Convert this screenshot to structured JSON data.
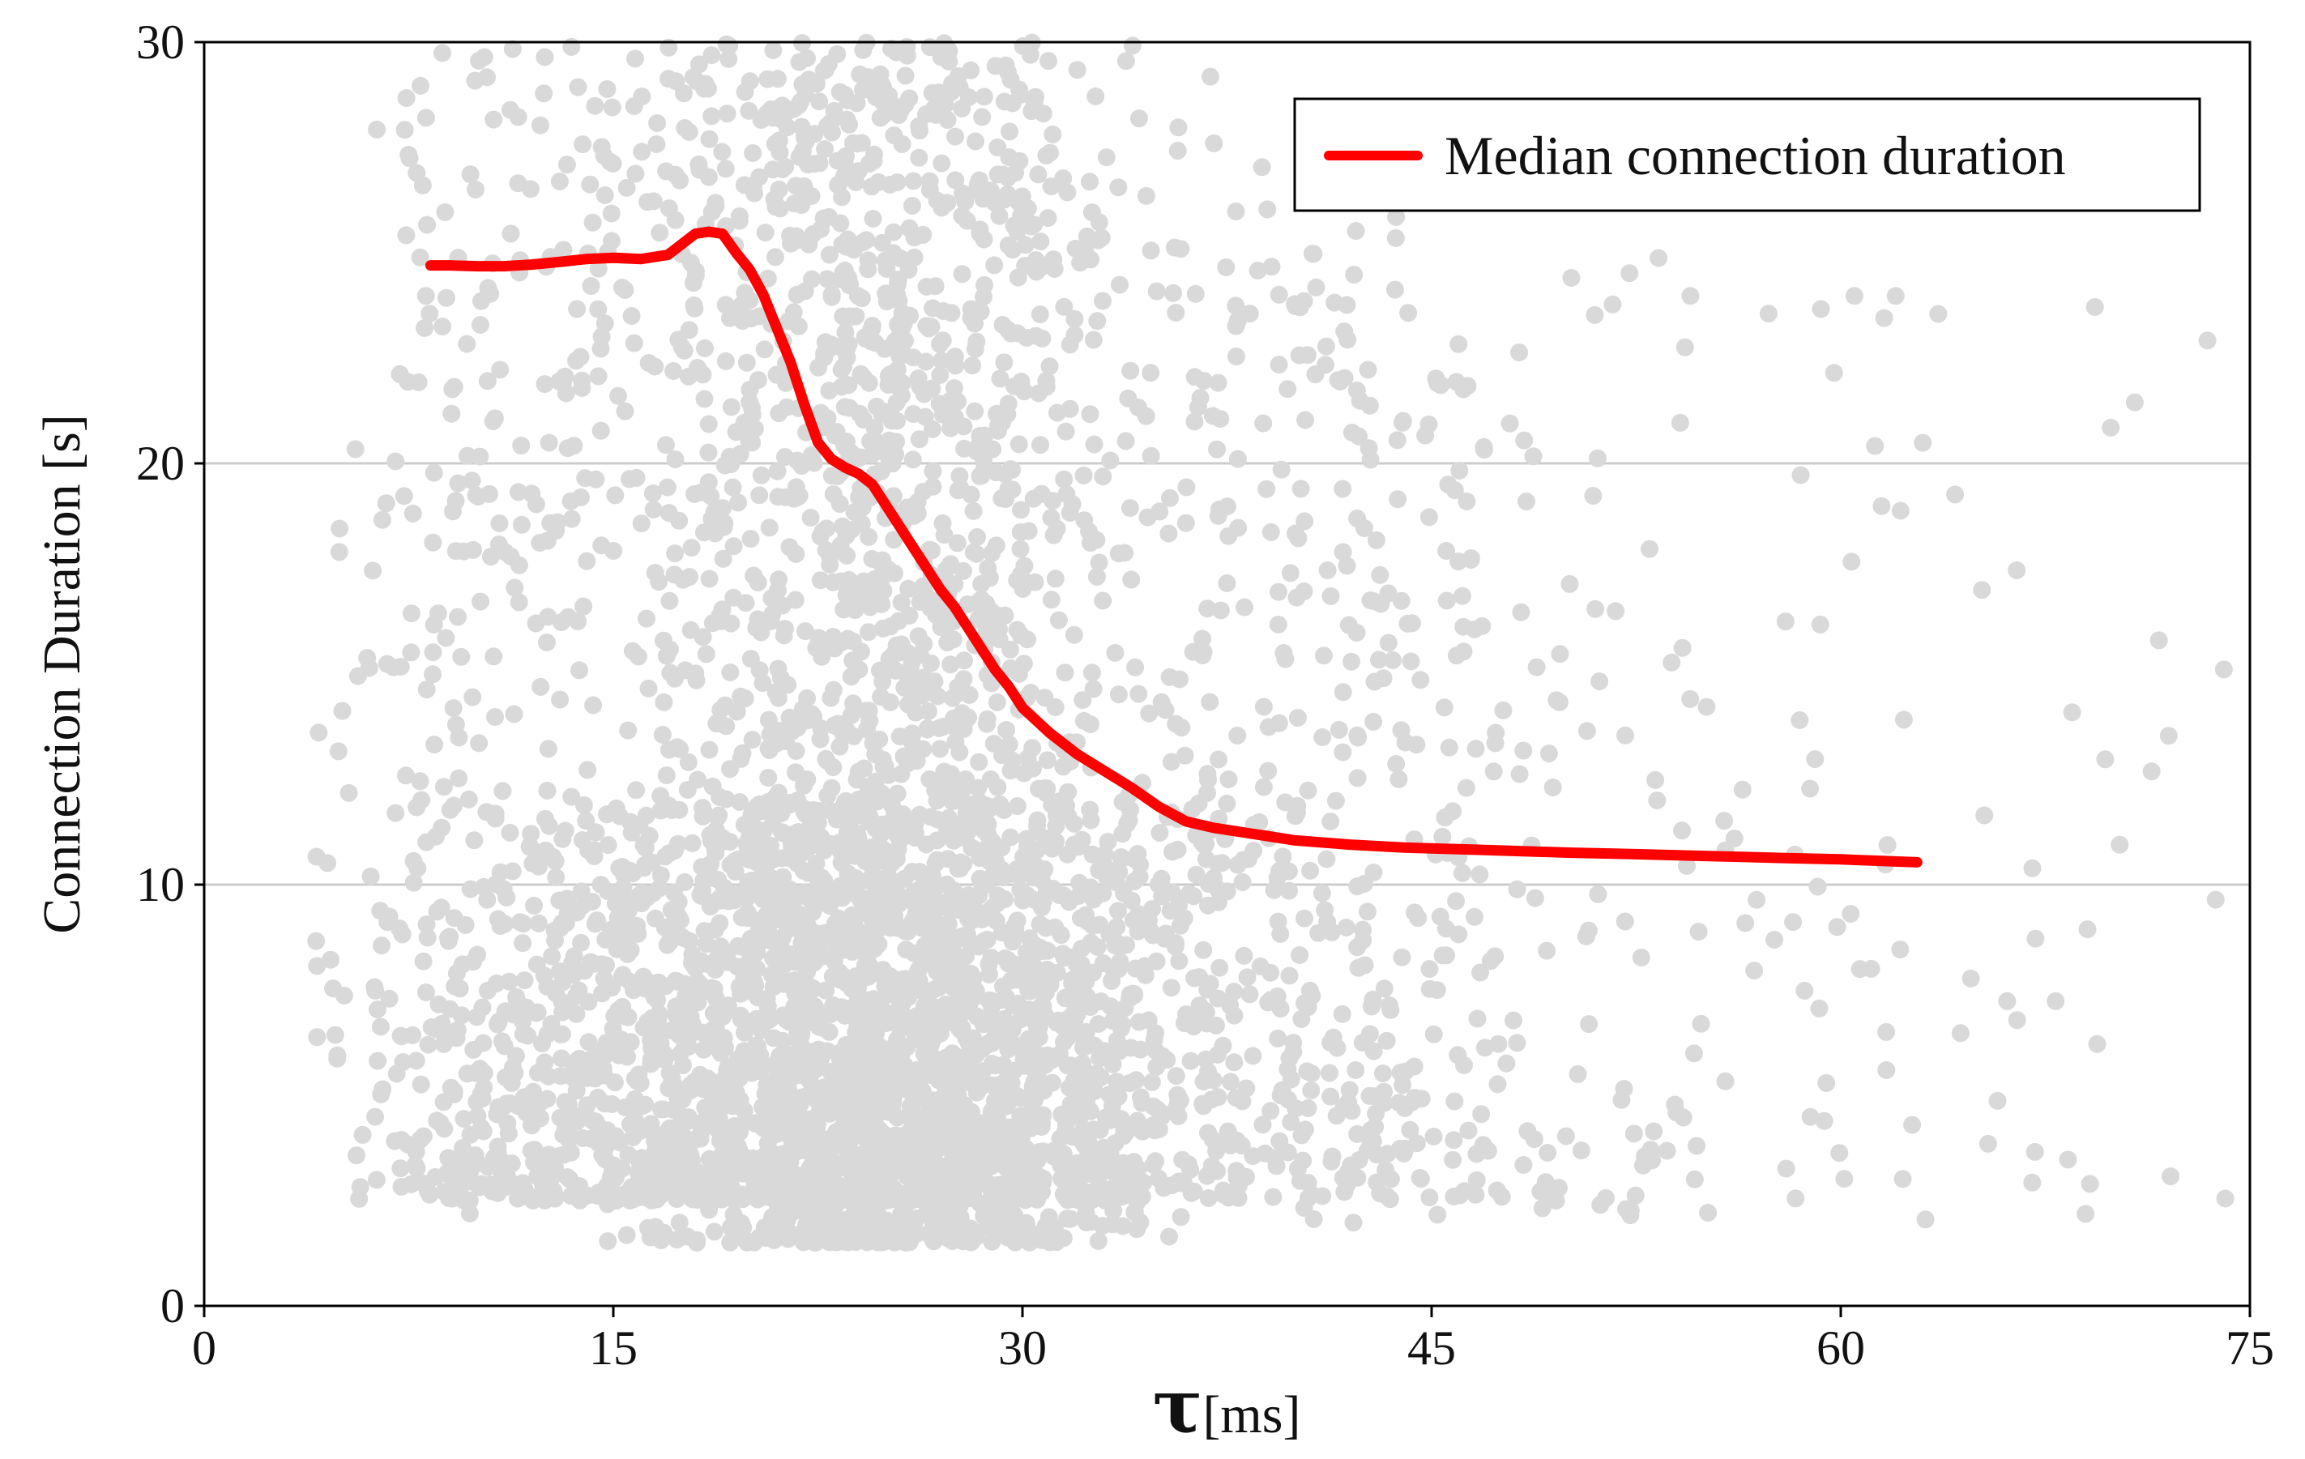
{
  "chart_data": {
    "type": "scatter",
    "title": "",
    "xlabel_symbol": "τ",
    "xlabel_unit": "[ms]",
    "ylabel": "Connection Duration [s]",
    "xlim": [
      0,
      75
    ],
    "ylim": [
      0,
      30
    ],
    "xticks": [
      0,
      15,
      30,
      45,
      60,
      75
    ],
    "yticks": [
      0,
      10,
      20,
      30
    ],
    "x_tick_labels": [
      "0",
      "15",
      "30",
      "45",
      "60",
      "75"
    ],
    "y_tick_labels": [
      "0",
      "10",
      "20",
      "30"
    ],
    "grid": "horizontal",
    "legend": {
      "placement": "top-right",
      "entries": [
        "Median connection duration"
      ]
    },
    "colors": {
      "points": "#d9d9d9",
      "median": "#ff0000",
      "grid": "#cccccc",
      "axis": "#000000"
    },
    "scatter_series": {
      "name": "",
      "description_clusters": [
        {
          "x_mean": 25,
          "x_sd": 4.5,
          "y_min": 1.5,
          "y_max": 30,
          "n": 2200
        },
        {
          "x_mean": 24,
          "x_sd": 7.5,
          "y_min": 2.5,
          "y_max": 12,
          "n": 1600
        },
        {
          "x_mean": 12,
          "x_sd": 4,
          "y_min": 2.5,
          "y_max": 30,
          "n": 500
        },
        {
          "x_mean": 40,
          "x_sd": 5,
          "y_min": 2.5,
          "y_max": 28,
          "n": 450
        },
        {
          "x_mean": 55,
          "x_sd": 11,
          "y_min": 2,
          "y_max": 25,
          "n": 220
        }
      ]
    },
    "series": [
      {
        "name": "Median connection duration",
        "x": [
          8.3,
          9,
          10,
          11,
          12,
          13,
          14,
          15,
          16,
          17,
          17.5,
          18,
          18.5,
          19,
          19.5,
          20,
          20.5,
          21,
          21.5,
          22,
          22.5,
          23,
          23.5,
          24,
          24.5,
          25,
          25.5,
          26,
          26.5,
          27,
          27.5,
          28,
          28.5,
          29,
          29.5,
          30,
          31,
          32,
          33,
          34,
          35,
          36,
          37,
          38,
          39,
          40,
          42,
          44,
          46,
          48,
          50,
          52,
          55,
          58,
          60,
          62.8
        ],
        "y": [
          24.7,
          24.7,
          24.68,
          24.68,
          24.72,
          24.78,
          24.85,
          24.88,
          24.85,
          24.95,
          25.2,
          25.45,
          25.5,
          25.45,
          25.0,
          24.6,
          24.0,
          23.2,
          22.4,
          21.4,
          20.5,
          20.1,
          19.9,
          19.75,
          19.5,
          19.0,
          18.5,
          18.0,
          17.5,
          17.0,
          16.6,
          16.1,
          15.6,
          15.1,
          14.7,
          14.2,
          13.6,
          13.1,
          12.7,
          12.3,
          11.85,
          11.5,
          11.35,
          11.25,
          11.15,
          11.05,
          10.95,
          10.88,
          10.84,
          10.8,
          10.76,
          10.73,
          10.68,
          10.63,
          10.6,
          10.53
        ]
      }
    ]
  }
}
